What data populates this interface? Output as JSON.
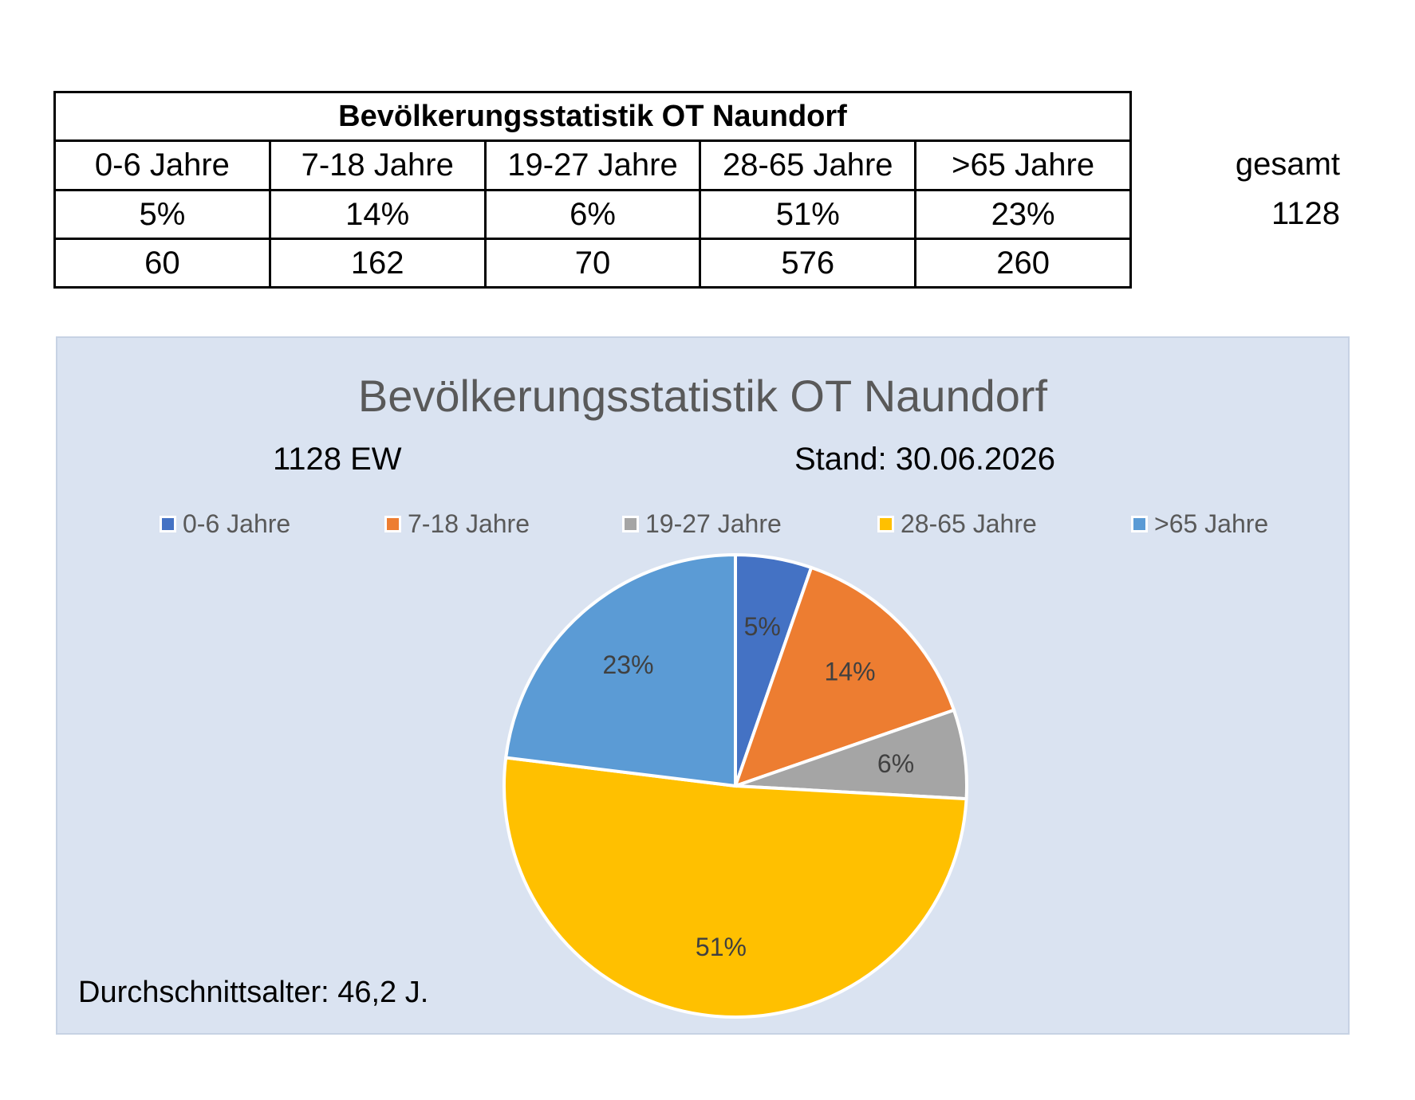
{
  "table": {
    "title": "Bevölkerungsstatistik OT Naundorf",
    "headers": [
      "0-6 Jahre",
      "7-18 Jahre",
      "19-27 Jahre",
      "28-65 Jahre",
      ">65 Jahre"
    ],
    "percents": [
      "5%",
      "14%",
      "6%",
      "51%",
      "23%"
    ],
    "counts": [
      "60",
      "162",
      "70",
      "576",
      "260"
    ],
    "total_label": "gesamt",
    "total_value": "1128"
  },
  "chart_data": {
    "type": "pie",
    "title": "Bevölkerungsstatistik OT Naundorf",
    "subtitle_left": "1128 EW",
    "subtitle_right": "Stand: 30.06.2026",
    "footer_note": "Durchschnittsalter: 46,2 J.",
    "categories": [
      "0-6 Jahre",
      "7-18 Jahre",
      "19-27 Jahre",
      "28-65 Jahre",
      ">65 Jahre"
    ],
    "values": [
      60,
      162,
      70,
      576,
      260
    ],
    "labels": [
      "5%",
      "14%",
      "6%",
      "51%",
      "23%"
    ],
    "colors": [
      "#4472c4",
      "#ed7d31",
      "#a5a5a5",
      "#ffc000",
      "#5b9bd5"
    ],
    "legend_position": "top"
  }
}
